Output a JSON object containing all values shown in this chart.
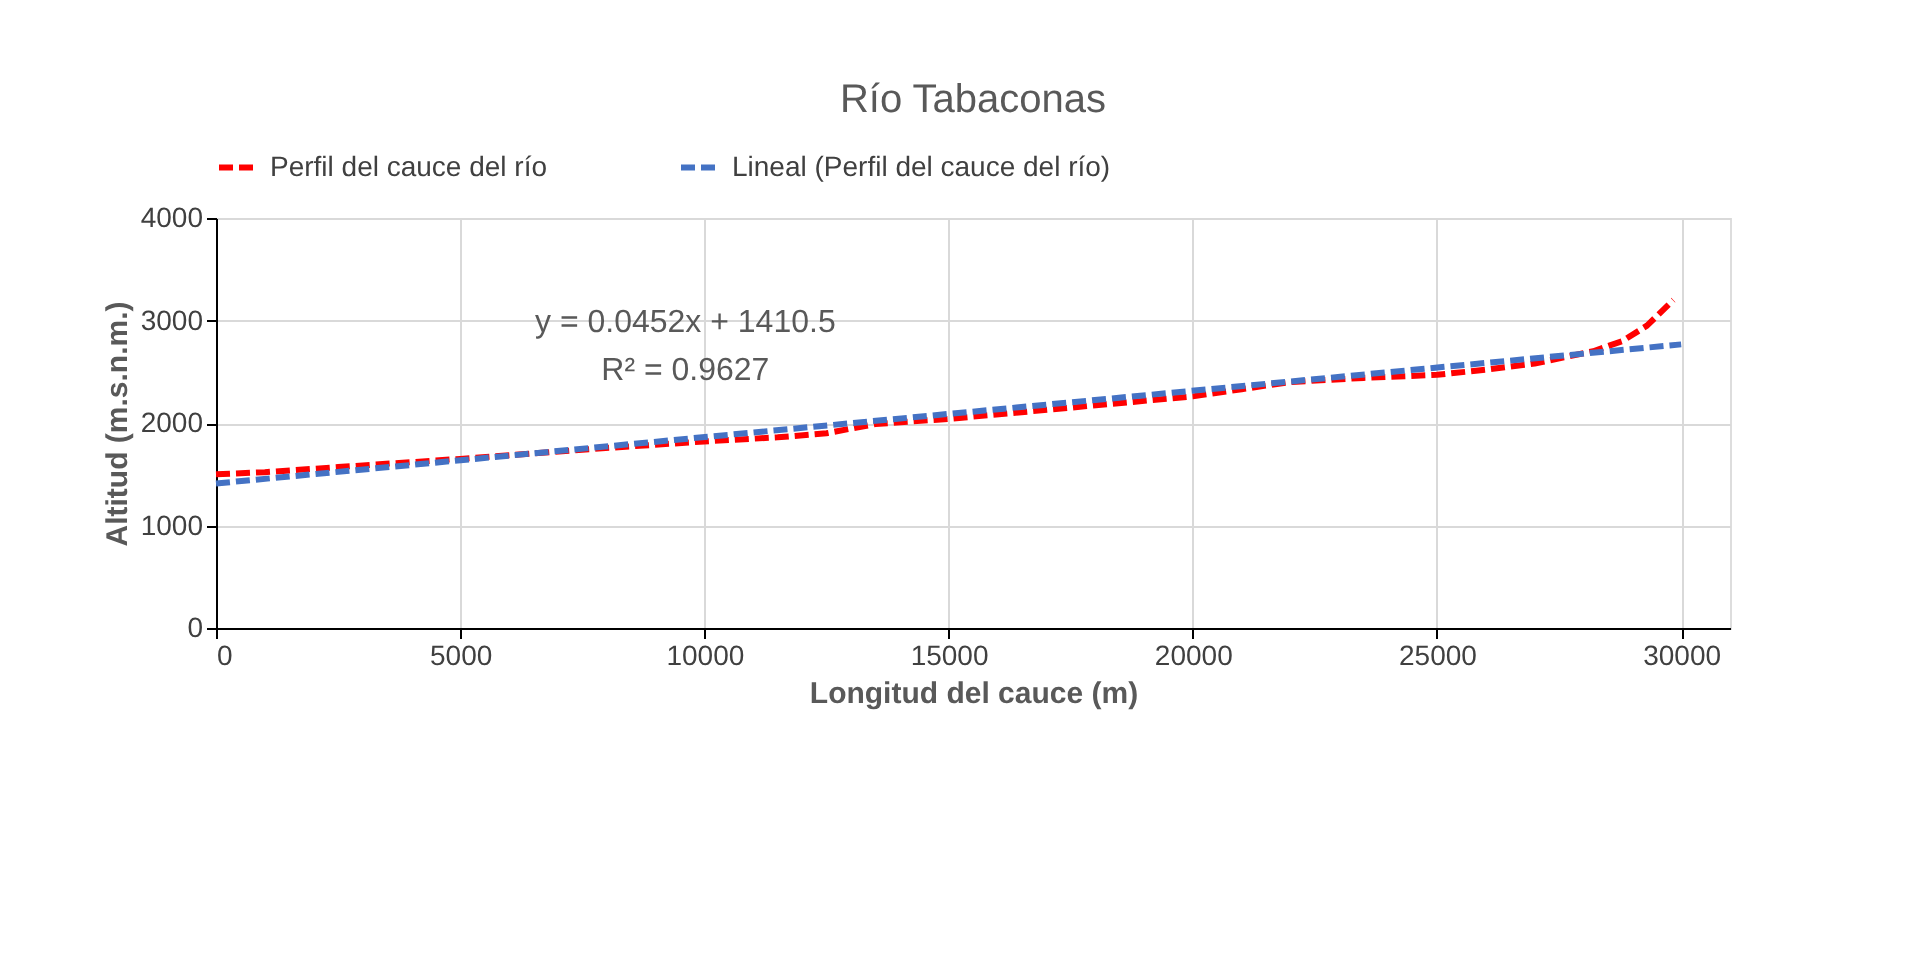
{
  "chart_data": {
    "type": "line",
    "title": "Río Tabaconas",
    "xlabel": "Longitud del cauce (m)",
    "ylabel": "Altitud (m.s.n.m.)",
    "xlim": [
      0,
      31000
    ],
    "xticks": [
      0,
      5000,
      10000,
      15000,
      20000,
      25000,
      30000
    ],
    "ylim": [
      0,
      4000
    ],
    "yticks": [
      0,
      1000,
      2000,
      3000,
      4000
    ],
    "grid": true,
    "legend": "top",
    "marker": "none",
    "line_style": "dashed",
    "annotations": [
      "y = 0.0452x + 1410.5",
      "R² = 0.9627"
    ],
    "series": [
      {
        "name": "Perfil del cauce del río",
        "color": "#ff0000",
        "x": [
          0,
          1000,
          2500,
          5000,
          7500,
          10000,
          11500,
          12500,
          13500,
          15000,
          17500,
          20000,
          21000,
          22000,
          23500,
          25000,
          26000,
          27000,
          28200,
          28800,
          29300,
          29840
        ],
        "values": [
          1500,
          1520,
          1570,
          1650,
          1740,
          1820,
          1860,
          1900,
          1990,
          2040,
          2150,
          2260,
          2330,
          2400,
          2440,
          2470,
          2520,
          2580,
          2700,
          2800,
          2950,
          3200
        ]
      },
      {
        "name": "Lineal (Perfil del cauce del río)",
        "color": "#4472c4",
        "x": [
          0,
          30000
        ],
        "values": [
          1410,
          2767
        ]
      }
    ]
  }
}
